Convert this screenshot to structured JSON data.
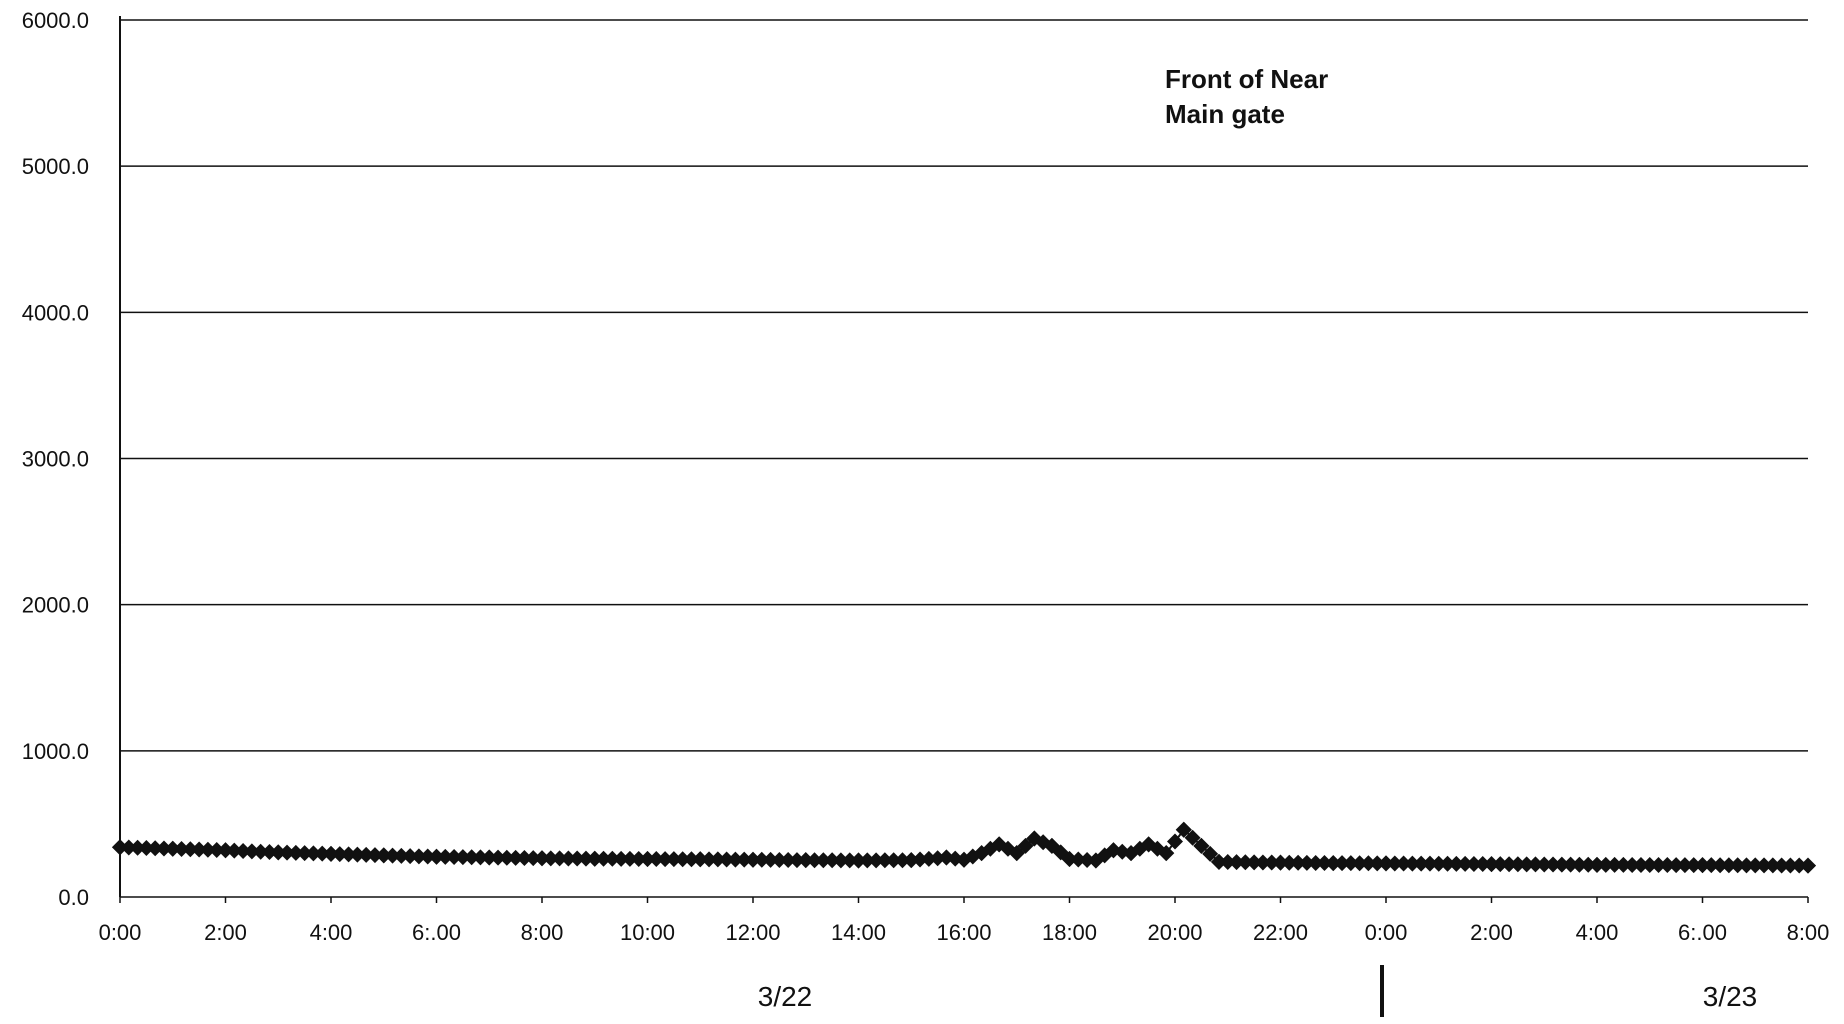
{
  "chart_data": {
    "type": "line",
    "title": "",
    "xlabel": "",
    "ylabel": "",
    "ylim": [
      0,
      6000
    ],
    "y_ticks": [
      "0.0",
      "1000.0",
      "2000.0",
      "3000.0",
      "4000.0",
      "5000.0",
      "6000.0"
    ],
    "x_range": [
      "3/22 0:00",
      "3/23 8:00"
    ],
    "x_ticks": [
      "0:00",
      "2:00",
      "4:00",
      "6:.00",
      "8:00",
      "10:00",
      "12:00",
      "14:00",
      "16:00",
      "18:00",
      "20:00",
      "22:00",
      "0:00",
      "2:00",
      "4:00",
      "6:.00",
      "8:00"
    ],
    "date_labels": [
      "3/22",
      "3/23"
    ],
    "annotation": [
      "Front of Near",
      "Main gate"
    ],
    "grid": "horizontal",
    "marker": "diamond",
    "colors": {
      "series": "#111111",
      "grid": "#111111"
    },
    "series": [
      {
        "name": "",
        "points": [
          [
            "3/22 0:00",
            340
          ],
          [
            "3/22 1:00",
            330
          ],
          [
            "3/22 2:00",
            320
          ],
          [
            "3/22 3:00",
            305
          ],
          [
            "3/22 4:00",
            295
          ],
          [
            "3/22 5:00",
            285
          ],
          [
            "3/22 6:00",
            275
          ],
          [
            "3/22 7:00",
            270
          ],
          [
            "3/22 8:00",
            265
          ],
          [
            "3/22 9:00",
            262
          ],
          [
            "3/22 10:00",
            260
          ],
          [
            "3/22 11:00",
            258
          ],
          [
            "3/22 12:00",
            255
          ],
          [
            "3/22 13:00",
            252
          ],
          [
            "3/22 14:00",
            250
          ],
          [
            "3/22 15:00",
            252
          ],
          [
            "3/22 15:40",
            270
          ],
          [
            "3/22 16:00",
            255
          ],
          [
            "3/22 16:20",
            300
          ],
          [
            "3/22 16:40",
            360
          ],
          [
            "3/22 17:00",
            300
          ],
          [
            "3/22 17:20",
            400
          ],
          [
            "3/22 17:40",
            350
          ],
          [
            "3/22 18:00",
            260
          ],
          [
            "3/22 18:30",
            250
          ],
          [
            "3/22 18:50",
            320
          ],
          [
            "3/22 19:10",
            300
          ],
          [
            "3/22 19:30",
            360
          ],
          [
            "3/22 19:50",
            300
          ],
          [
            "3/22 20:10",
            460
          ],
          [
            "3/22 20:30",
            350
          ],
          [
            "3/22 20:50",
            240
          ],
          [
            "3/22 22:00",
            235
          ],
          [
            "3/22 23:00",
            232
          ],
          [
            "3/23 0:00",
            230
          ],
          [
            "3/23 2:00",
            225
          ],
          [
            "3/23 4:00",
            220
          ],
          [
            "3/23 6:00",
            218
          ],
          [
            "3/23 8:00",
            215
          ]
        ]
      }
    ]
  }
}
